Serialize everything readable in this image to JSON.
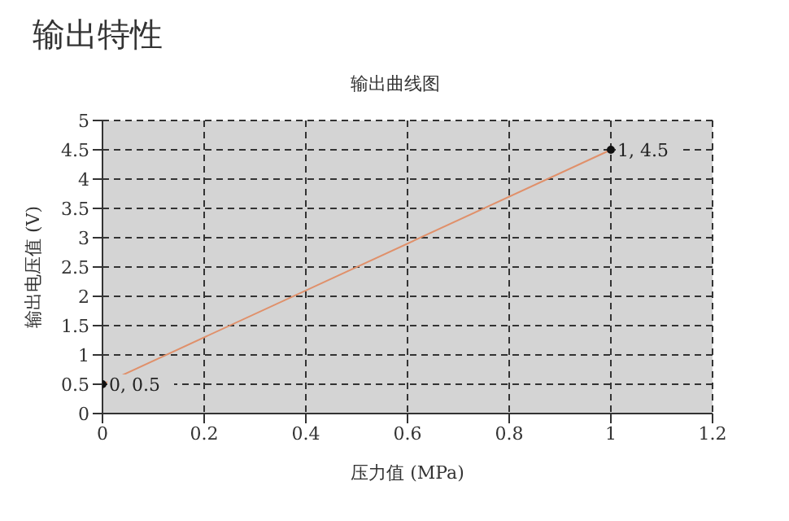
{
  "chart_data": {
    "type": "line",
    "title": "输出特性",
    "subtitle": "输出曲线图",
    "xlabel": "压力值 (MPa)",
    "ylabel": "输出电压值 (V)",
    "x": [
      0,
      1
    ],
    "series": [
      {
        "color": "#e0906a",
        "values": [
          0.5,
          4.5
        ],
        "value_labels": [
          "0, 0.5",
          "1, 4.5"
        ]
      }
    ],
    "xlim": [
      0,
      1.2
    ],
    "xticks": [
      0,
      0.2,
      0.4,
      0.6,
      0.8,
      1,
      1.2
    ],
    "ylim": [
      0,
      5
    ],
    "yticks": [
      0,
      0.5,
      1,
      1.5,
      2,
      2.5,
      3,
      3.5,
      4,
      4.5,
      5
    ],
    "grid": true,
    "marker": "circle",
    "line_style": "solid",
    "legend": false
  }
}
